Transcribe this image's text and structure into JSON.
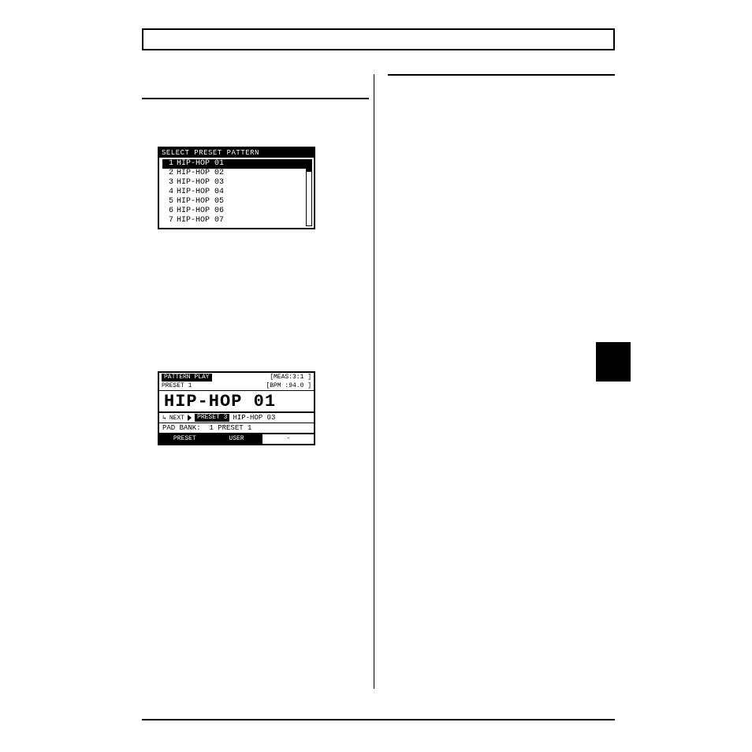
{
  "lcd_select": {
    "title": "SELECT PRESET PATTERN",
    "items": [
      {
        "n": "1",
        "name": "HIP-HOP 01",
        "selected": true
      },
      {
        "n": "2",
        "name": "HIP-HOP 02",
        "selected": false
      },
      {
        "n": "3",
        "name": "HIP-HOP 03",
        "selected": false
      },
      {
        "n": "4",
        "name": "HIP-HOP 04",
        "selected": false
      },
      {
        "n": "5",
        "name": "HIP-HOP 05",
        "selected": false
      },
      {
        "n": "6",
        "name": "HIP-HOP 06",
        "selected": false
      },
      {
        "n": "7",
        "name": "HIP-HOP 07",
        "selected": false
      }
    ],
    "scrollbar": {
      "thumb_pct": 18
    }
  },
  "lcd_play": {
    "top_label": "PATTERN PLAY",
    "meas": "[MEAS:3:1  ]",
    "preset": "PRESET 1",
    "bpm": "[BPM :94.0 ]",
    "current": "HIP-HOP 01",
    "next_label": "NEXT",
    "next_badge": "PRESET 3",
    "next_name": "HIP-HOP 03",
    "pad_bank": "PAD BANK:  1 PRESET 1",
    "softkeys": [
      "PRESET",
      "USER",
      "-"
    ],
    "active_softkey": 0
  },
  "colors": {
    "fg": "#000000",
    "bg": "#ffffff"
  }
}
